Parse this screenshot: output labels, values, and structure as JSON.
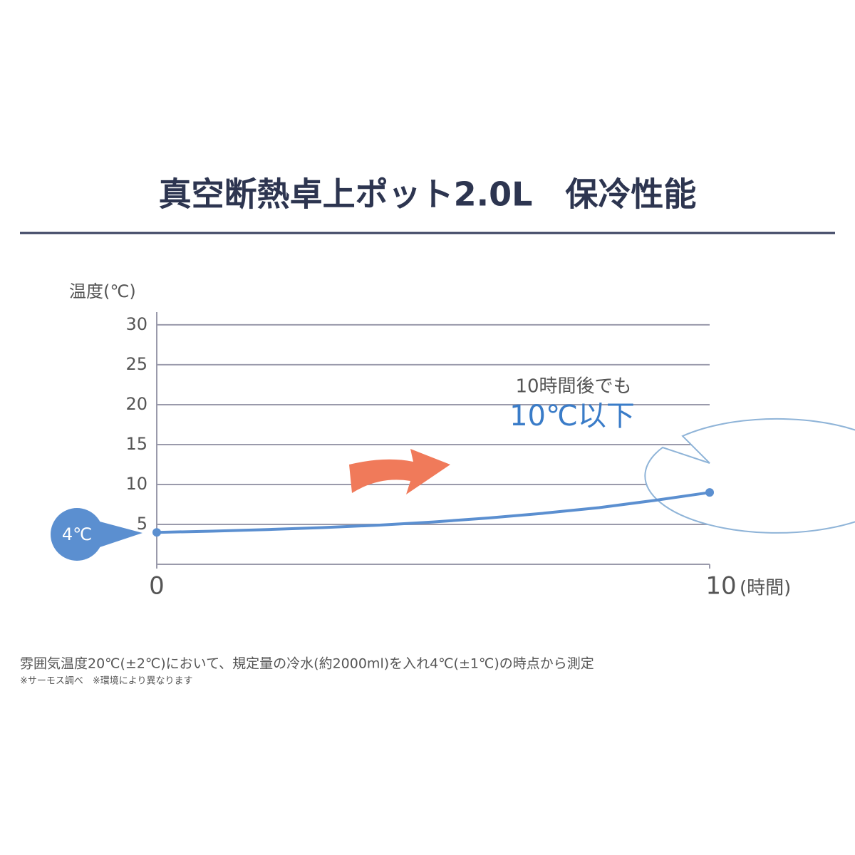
{
  "chart_data": {
    "type": "line",
    "title": "真空断熱卓上ポット2.0L　保冷性能",
    "y_label": "温度(℃)",
    "x_label": "(時間)",
    "x": [
      0,
      1,
      2,
      3,
      4,
      5,
      6,
      7,
      8,
      9,
      10
    ],
    "values": [
      4,
      4.15,
      4.35,
      4.6,
      4.9,
      5.3,
      5.8,
      6.4,
      7.1,
      8.0,
      9.0
    ],
    "color": "#5b8fd0",
    "xlim": [
      0,
      10
    ],
    "xticks": [
      0,
      10
    ],
    "ylim": [
      0,
      31.6
    ],
    "yticks": [
      5,
      10,
      15,
      20,
      25,
      30
    ],
    "grid": true,
    "annotations": {
      "start": "4℃",
      "bubble_line1": "10時間後でも",
      "bubble_line2": "10℃以下"
    },
    "footnote": "雰囲気温度20℃(±2℃)において、規定量の冷水(約2000ml)を入れ4℃(±1℃)の時点から測定",
    "footnote2": "※サーモス調べ　※環境により異なります"
  }
}
